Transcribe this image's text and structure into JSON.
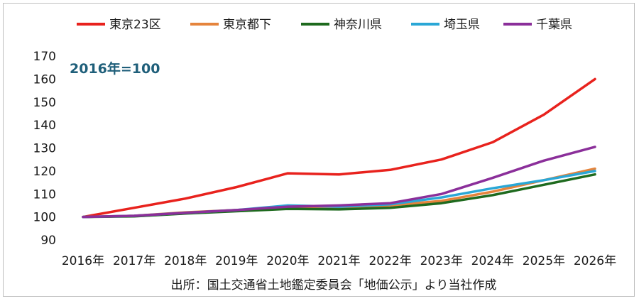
{
  "chart_data": {
    "type": "line",
    "annotation": "2016年=100",
    "source_note": "出所：国土交通省土地鑑定委員会「地価公示」より当社作成",
    "categories": [
      "2016年",
      "2017年",
      "2018年",
      "2019年",
      "2020年",
      "2021年",
      "2022年",
      "2023年",
      "2024年",
      "2025年",
      "2026年"
    ],
    "ylim": [
      90,
      170
    ],
    "yticks": [
      90,
      100,
      110,
      120,
      130,
      140,
      150,
      160,
      170
    ],
    "grid": false,
    "legend_position": "top",
    "series": [
      {
        "name": "東京23区",
        "color": "#e8221d",
        "values": [
          100,
          104,
          108,
          113,
          119,
          118.5,
          120.5,
          125,
          132.5,
          144.5,
          160
        ]
      },
      {
        "name": "東京都下",
        "color": "#e5843c",
        "values": [
          100,
          100.5,
          102,
          103,
          104,
          104,
          105,
          107,
          111,
          116,
          121
        ]
      },
      {
        "name": "神奈川県",
        "color": "#1e6a1e",
        "values": [
          100,
          100.3,
          101.5,
          102.5,
          103.5,
          103.3,
          104,
          106,
          109.5,
          114,
          118.5
        ]
      },
      {
        "name": "埼玉県",
        "color": "#2aa7d6",
        "values": [
          100,
          100.5,
          101.8,
          103,
          105,
          104.5,
          105.5,
          108.5,
          112.5,
          116,
          120
        ]
      },
      {
        "name": "千葉県",
        "color": "#8b2f9a",
        "values": [
          100,
          100.5,
          101.8,
          103,
          104.5,
          105,
          106,
          110,
          117,
          124.5,
          130.5
        ]
      }
    ]
  }
}
